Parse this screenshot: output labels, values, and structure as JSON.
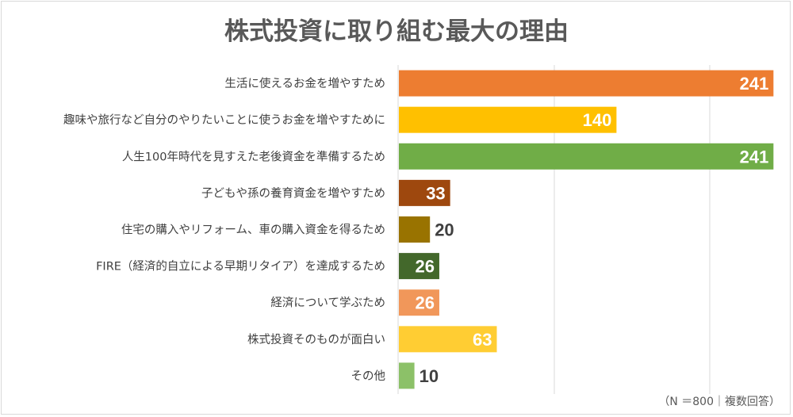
{
  "chart_data": {
    "type": "bar",
    "orientation": "horizontal",
    "title": "株式投資に取り組む最大の理由",
    "note": "（N ＝800｜複数回答）",
    "categories": [
      "生活に使えるお金を増やすため",
      "趣味や旅行など自分のやりたいことに使うお金を増やすために",
      "人生100年時代を見すえた老後資金を準備するため",
      "子どもや孫の養育資金を増やすため",
      "住宅の購入やリフォーム、車の購入資金を得るため",
      "FIRE（経済的自立による早期リタイア）を達成するため",
      "経済について学ぶため",
      "株式投資そのものが面白い",
      "その他"
    ],
    "values": [
      241,
      140,
      241,
      33,
      20,
      26,
      26,
      63,
      10
    ],
    "colors": [
      "#ED7D31",
      "#FFC000",
      "#70AD47",
      "#9E480E",
      "#997300",
      "#43682B",
      "#F1975A",
      "#FFCD33",
      "#8CC168"
    ],
    "xlim": [
      0,
      250
    ],
    "gridlines": [
      100,
      200
    ],
    "grid": true,
    "xlabel": "",
    "ylabel": ""
  }
}
